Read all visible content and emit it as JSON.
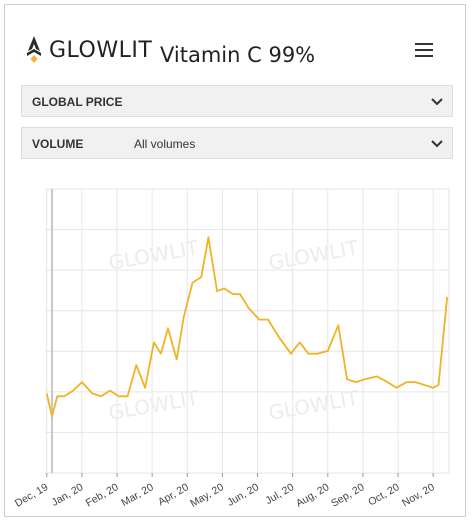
{
  "header": {
    "brand": "GLOWLIT",
    "product_title": "Vitamin C 99%"
  },
  "filters": {
    "price": {
      "label": "GLOBAL PRICE"
    },
    "volume": {
      "label": "VOLUME",
      "value": "All volumes"
    }
  },
  "watermark_text": "GLOWLIT",
  "colors": {
    "brand_accent": "#f2b233",
    "series": "#f0b323",
    "grid": "#e6e6e6"
  },
  "chart_data": {
    "type": "line",
    "title": "",
    "xlabel": "",
    "ylabel": "",
    "x_tick_labels": [
      "Dec, 19",
      "Jan, 20",
      "Feb, 20",
      "Mar, 20",
      "Apr, 20",
      "May, 20",
      "Jun, 20",
      "Jul, 20",
      "Aug, 20",
      "Sep, 20",
      "Oct, 20",
      "Nov, 20"
    ],
    "x_range": [
      -0.05,
      11.45
    ],
    "grid": true,
    "series": [
      {
        "name": "",
        "points": [
          [
            0.0,
            0.28
          ],
          [
            0.15,
            0.2
          ],
          [
            0.3,
            0.27
          ],
          [
            0.5,
            0.27
          ],
          [
            0.75,
            0.29
          ],
          [
            1.0,
            0.32
          ],
          [
            1.3,
            0.28
          ],
          [
            1.55,
            0.27
          ],
          [
            1.8,
            0.29
          ],
          [
            2.05,
            0.27
          ],
          [
            2.3,
            0.27
          ],
          [
            2.55,
            0.38
          ],
          [
            2.8,
            0.3
          ],
          [
            3.05,
            0.46
          ],
          [
            3.25,
            0.42
          ],
          [
            3.45,
            0.51
          ],
          [
            3.7,
            0.4
          ],
          [
            3.9,
            0.55
          ],
          [
            4.15,
            0.67
          ],
          [
            4.4,
            0.69
          ],
          [
            4.6,
            0.83
          ],
          [
            4.85,
            0.64
          ],
          [
            5.05,
            0.65
          ],
          [
            5.3,
            0.63
          ],
          [
            5.5,
            0.63
          ],
          [
            5.75,
            0.58
          ],
          [
            6.05,
            0.54
          ],
          [
            6.3,
            0.54
          ],
          [
            6.6,
            0.48
          ],
          [
            6.95,
            0.42
          ],
          [
            7.2,
            0.46
          ],
          [
            7.45,
            0.42
          ],
          [
            7.7,
            0.42
          ],
          [
            8.0,
            0.43
          ],
          [
            8.3,
            0.52
          ],
          [
            8.55,
            0.33
          ],
          [
            8.8,
            0.32
          ],
          [
            9.05,
            0.33
          ],
          [
            9.4,
            0.34
          ],
          [
            9.7,
            0.32
          ],
          [
            9.95,
            0.3
          ],
          [
            10.25,
            0.32
          ],
          [
            10.5,
            0.32
          ],
          [
            10.75,
            0.31
          ],
          [
            11.0,
            0.3
          ],
          [
            11.15,
            0.31
          ],
          [
            11.4,
            0.62
          ]
        ]
      }
    ]
  }
}
